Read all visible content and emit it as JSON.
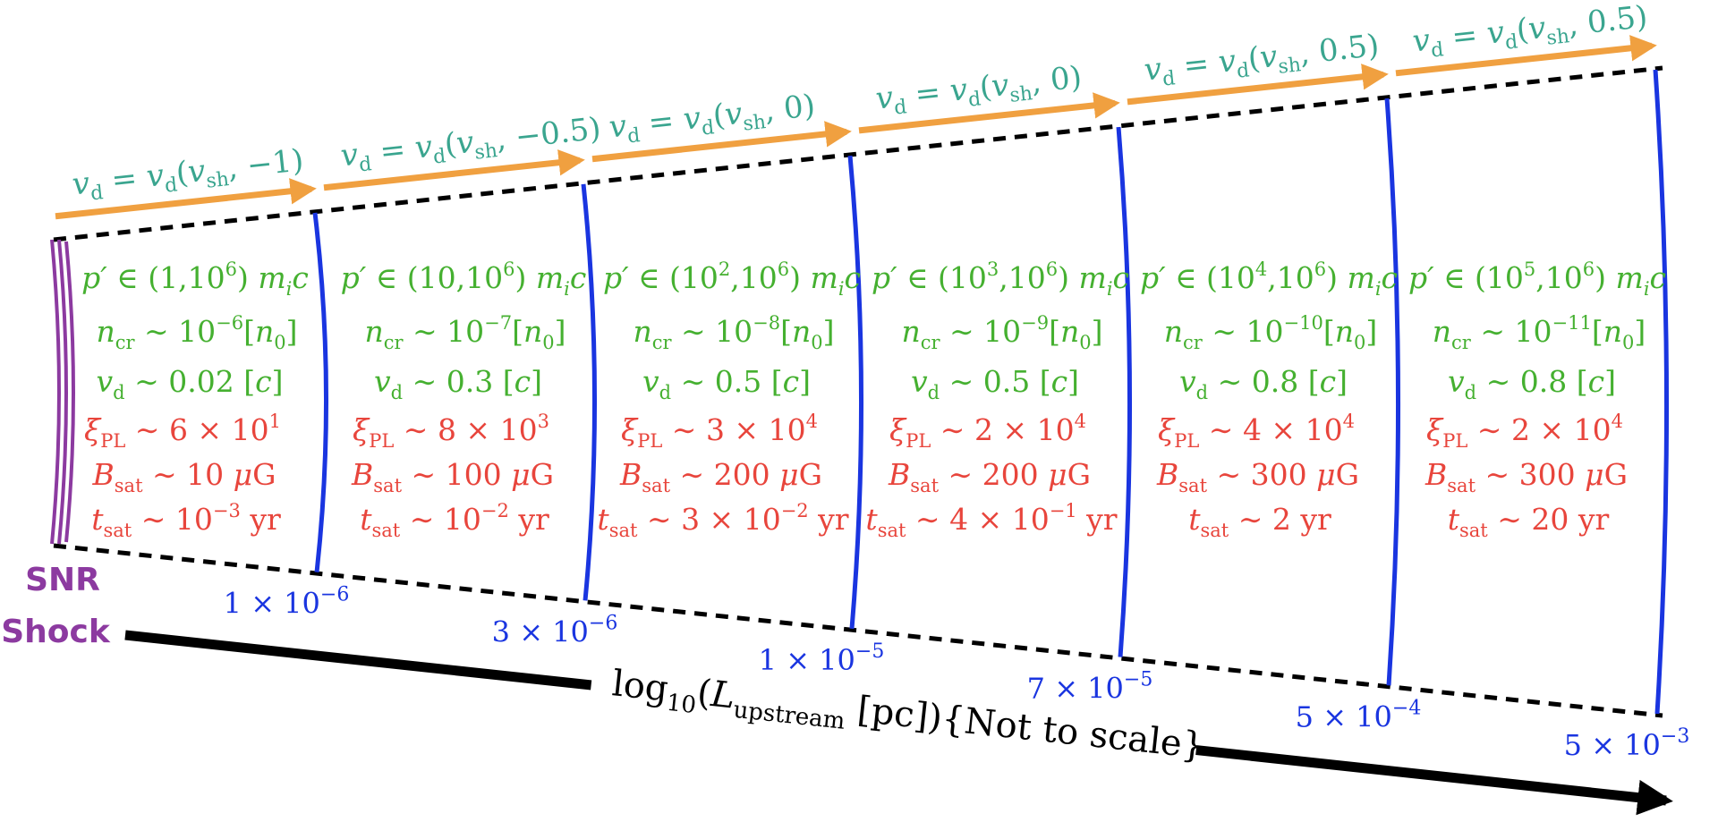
{
  "colors": {
    "velocity_arrow": "#f0a040",
    "velocity_label": "#3aa58f",
    "boundary": "#1a35e0",
    "momentum_text": "#45b030",
    "result_text": "#e8453c",
    "shock": "#8c3aa0",
    "axis": "#000000"
  },
  "shock_label": {
    "line1": "SNR",
    "line2": "Shock"
  },
  "axis_label": {
    "prefix": "log",
    "base": "10",
    "open": "(",
    "var": "L",
    "var_sub": "upstream",
    "unit": " [pc])",
    "note": "{Not to scale}"
  },
  "regions": [
    {
      "vd_label": {
        "arg": "−1"
      },
      "p_range": {
        "low": "1",
        "low_exp": "",
        "high_exp": "6"
      },
      "n_cr_exp": "−6",
      "v_d": "0.02",
      "xi_pl": {
        "mant": "6",
        "exp": "1"
      },
      "b_sat": "10",
      "t_sat": {
        "kind": "pow",
        "mant": "",
        "exp": "−3"
      },
      "boundary_label": {
        "mant": "1",
        "exp": "−6"
      }
    },
    {
      "vd_label": {
        "arg": "−0.5"
      },
      "p_range": {
        "low": "10",
        "low_exp": "",
        "high_exp": "6"
      },
      "n_cr_exp": "−7",
      "v_d": "0.3",
      "xi_pl": {
        "mant": "8",
        "exp": "3"
      },
      "b_sat": "100",
      "t_sat": {
        "kind": "pow",
        "mant": "",
        "exp": "−2"
      },
      "boundary_label": {
        "mant": "3",
        "exp": "−6"
      }
    },
    {
      "vd_label": {
        "arg": "0"
      },
      "p_range": {
        "low": "10",
        "low_exp": "2",
        "high_exp": "6"
      },
      "n_cr_exp": "−8",
      "v_d": "0.5",
      "xi_pl": {
        "mant": "3",
        "exp": "4"
      },
      "b_sat": "200",
      "t_sat": {
        "kind": "pow",
        "mant": "3",
        "exp": "−2"
      },
      "boundary_label": {
        "mant": "1",
        "exp": "−5"
      }
    },
    {
      "vd_label": {
        "arg": "0"
      },
      "p_range": {
        "low": "10",
        "low_exp": "3",
        "high_exp": "6"
      },
      "n_cr_exp": "−9",
      "v_d": "0.5",
      "xi_pl": {
        "mant": "2",
        "exp": "4"
      },
      "b_sat": "200",
      "t_sat": {
        "kind": "pow",
        "mant": "4",
        "exp": "−1"
      },
      "boundary_label": {
        "mant": "7",
        "exp": "−5"
      }
    },
    {
      "vd_label": {
        "arg": "0.5"
      },
      "p_range": {
        "low": "10",
        "low_exp": "4",
        "high_exp": "6"
      },
      "n_cr_exp": "−10",
      "v_d": "0.8",
      "xi_pl": {
        "mant": "4",
        "exp": "4"
      },
      "b_sat": "300",
      "t_sat": {
        "kind": "plain",
        "value": "2"
      },
      "boundary_label": {
        "mant": "5",
        "exp": "−4"
      }
    },
    {
      "vd_label": {
        "arg": "0.5"
      },
      "p_range": {
        "low": "10",
        "low_exp": "5",
        "high_exp": "6"
      },
      "n_cr_exp": "−11",
      "v_d": "0.8",
      "xi_pl": {
        "mant": "2",
        "exp": "4"
      },
      "b_sat": "300",
      "t_sat": {
        "kind": "plain",
        "value": "20"
      },
      "boundary_label": {
        "mant": "5",
        "exp": "−3"
      }
    }
  ]
}
